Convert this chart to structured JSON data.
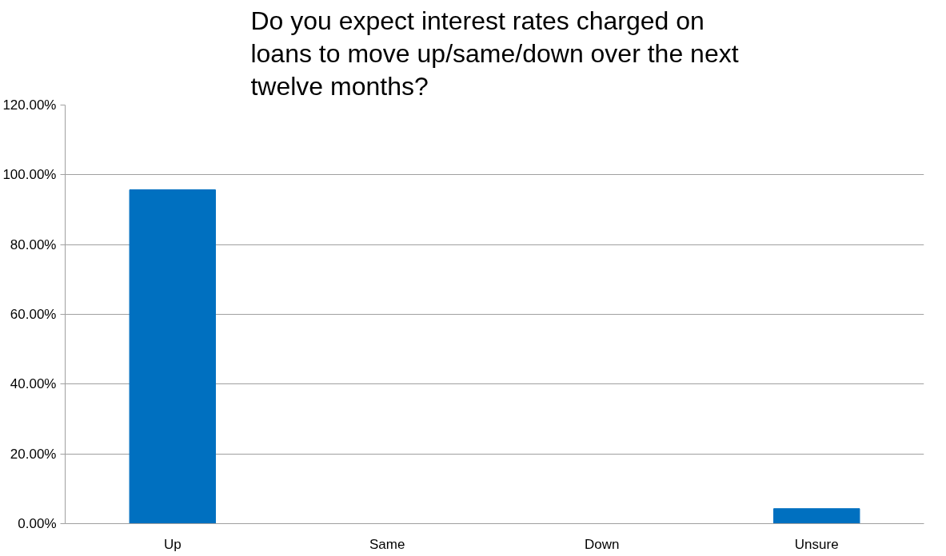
{
  "chart_data": {
    "type": "bar",
    "title": "Do you expect interest rates charged on loans to move up/same/down over the next twelve months?",
    "categories": [
      "Up",
      "Same",
      "Down",
      "Unsure"
    ],
    "values": [
      95.7,
      0,
      0,
      4.3
    ],
    "color": "#0070c0",
    "ylim": [
      0,
      120
    ],
    "yticks": [
      {
        "value": 0,
        "label": "0.00%"
      },
      {
        "value": 20,
        "label": "20.00%"
      },
      {
        "value": 40,
        "label": "40.00%"
      },
      {
        "value": 60,
        "label": "60.00%"
      },
      {
        "value": 80,
        "label": "80.00%"
      },
      {
        "value": 100,
        "label": "100.00%"
      },
      {
        "value": 120,
        "label": "120.00%"
      }
    ],
    "grid": "y"
  }
}
